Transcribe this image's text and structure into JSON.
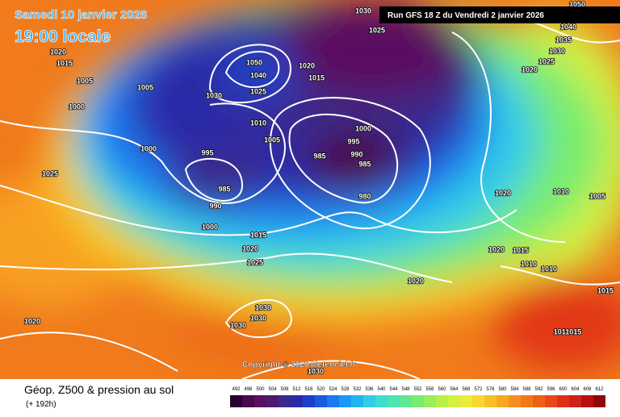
{
  "header": {
    "date": "Samedi 10 janvier 2026",
    "time": "19:00 locale",
    "run": "Run GFS 18 Z du Vendredi 2 janvier 2026"
  },
  "copyright": "Copyright © 2026 Meteociel.fr",
  "footer": {
    "title": "Géop. Z500 & pression au sol",
    "lead": "(+ 192h)"
  },
  "isobar_labels": [
    "1050",
    "1020",
    "1015",
    "1005",
    "1005",
    "1000",
    "1000",
    "1025",
    "1030",
    "1025",
    "1020",
    "1015",
    "1050",
    "1040",
    "1025",
    "1030",
    "1010",
    "1005",
    "995",
    "985",
    "990",
    "1000",
    "1015",
    "1020",
    "1025",
    "985",
    "995",
    "1000",
    "990",
    "985",
    "980",
    "1040",
    "1035",
    "1030",
    "1025",
    "1020",
    "1020",
    "1010",
    "1005",
    "1020",
    "1015",
    "1010",
    "1010",
    "1020",
    "1030",
    "1030",
    "1030",
    "1030",
    "1020",
    "1015",
    "1011015"
  ],
  "legend": {
    "values": [
      492,
      496,
      500,
      504,
      508,
      512,
      516,
      520,
      524,
      528,
      532,
      536,
      540,
      544,
      548,
      552,
      556,
      560,
      564,
      568,
      572,
      576,
      580,
      584,
      588,
      592,
      596,
      600,
      604,
      608,
      612
    ],
    "colors": [
      "#2a0030",
      "#4a0a4e",
      "#5a1060",
      "#4b1a6e",
      "#3a2a8a",
      "#2a2aa8",
      "#1e3fc8",
      "#1a5ae0",
      "#1a78f0",
      "#1a98f5",
      "#20b4f0",
      "#30cce8",
      "#40dcd0",
      "#50e4b0",
      "#60e890",
      "#78ec70",
      "#98ef58",
      "#b8f048",
      "#d4f040",
      "#ecec38",
      "#f8d830",
      "#f8c028",
      "#f8a820",
      "#f59020",
      "#f07818",
      "#ec6018",
      "#e84818",
      "#e03018",
      "#d02018",
      "#b81010",
      "#900808"
    ]
  }
}
